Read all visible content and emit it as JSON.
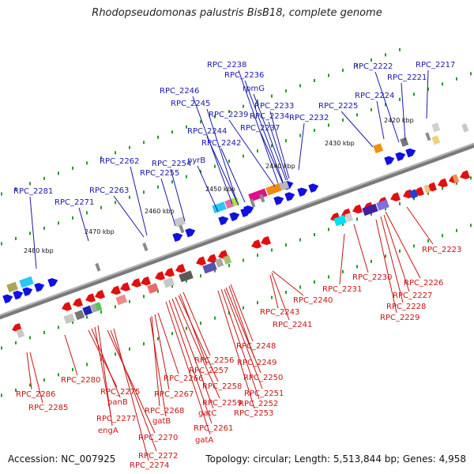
{
  "title": "Rhodopseudomonas palustris BisB18, complete genome",
  "accession": "Accession: NC_007925",
  "topology": "Topology: circular; Length: 5,513,844 bp; Genes: 4,958",
  "colors": {
    "forward_label": "#1a1aa8",
    "reverse_label": "#c81414",
    "forward_gene": "#1010e0",
    "reverse_gene": "#e01010",
    "backbone": "#7a7a7a",
    "tick": "#2a9a2a"
  },
  "scale_labels": [
    "2420 kbp",
    "2430 kbp",
    "2440 kbp",
    "2450 kbp",
    "2460 kbp",
    "2470 kbp",
    "2480 kbp"
  ],
  "top_labels": [
    {
      "text": "RPC_2238"
    },
    {
      "text": "RPC_2236"
    },
    {
      "text": "rpmG"
    },
    {
      "text": "RPC_2233"
    },
    {
      "text": "RPC_2234"
    },
    {
      "text": "RPC_2237"
    },
    {
      "text": "RPC_2232"
    },
    {
      "text": "RPC_2246"
    },
    {
      "text": "RPC_2245"
    },
    {
      "text": "RPC_2239"
    },
    {
      "text": "RPC_2244"
    },
    {
      "text": "RPC_2242"
    },
    {
      "text": "pyrB"
    },
    {
      "text": "RPC_2254"
    },
    {
      "text": "RPC_2255"
    },
    {
      "text": "RPC_2262"
    },
    {
      "text": "RPC_2263"
    },
    {
      "text": "RPC_2271"
    },
    {
      "text": "RPC_2281"
    },
    {
      "text": "RPC_2222"
    },
    {
      "text": "RPC_2221"
    },
    {
      "text": "RPC_2217"
    },
    {
      "text": "RPC_2224"
    },
    {
      "text": "RPC_2225"
    }
  ],
  "bottom_labels": [
    {
      "text": "RPC_2223"
    },
    {
      "text": "RPC_2226"
    },
    {
      "text": "RPC_2227"
    },
    {
      "text": "RPC_2228"
    },
    {
      "text": "RPC_2229"
    },
    {
      "text": "RPC_2230"
    },
    {
      "text": "RPC_2231"
    },
    {
      "text": "RPC_2240"
    },
    {
      "text": "RPC_2243"
    },
    {
      "text": "RPC_2241"
    },
    {
      "text": "RPC_2248"
    },
    {
      "text": "RPC_2249"
    },
    {
      "text": "RPC_2250"
    },
    {
      "text": "RPC_2251"
    },
    {
      "text": "RPC_2252"
    },
    {
      "text": "RPC_2253"
    },
    {
      "text": "RPC_2256"
    },
    {
      "text": "RPC_2257"
    },
    {
      "text": "RPC_2258"
    },
    {
      "text": "RPC_2259"
    },
    {
      "text": "gatC"
    },
    {
      "text": "RPC_2261"
    },
    {
      "text": "gatA"
    },
    {
      "text": "RPC_2266"
    },
    {
      "text": "RPC_2267"
    },
    {
      "text": "RPC_2268"
    },
    {
      "text": "gatB"
    },
    {
      "text": "RPC_2275"
    },
    {
      "text": "panB"
    },
    {
      "text": "RPC_2277"
    },
    {
      "text": "engA"
    },
    {
      "text": "RPC_2270"
    },
    {
      "text": "RPC_2272"
    },
    {
      "text": "RPC_2274"
    },
    {
      "text": "RPC_2280"
    },
    {
      "text": "RPC_2286"
    },
    {
      "text": "RPC_2285"
    }
  ]
}
